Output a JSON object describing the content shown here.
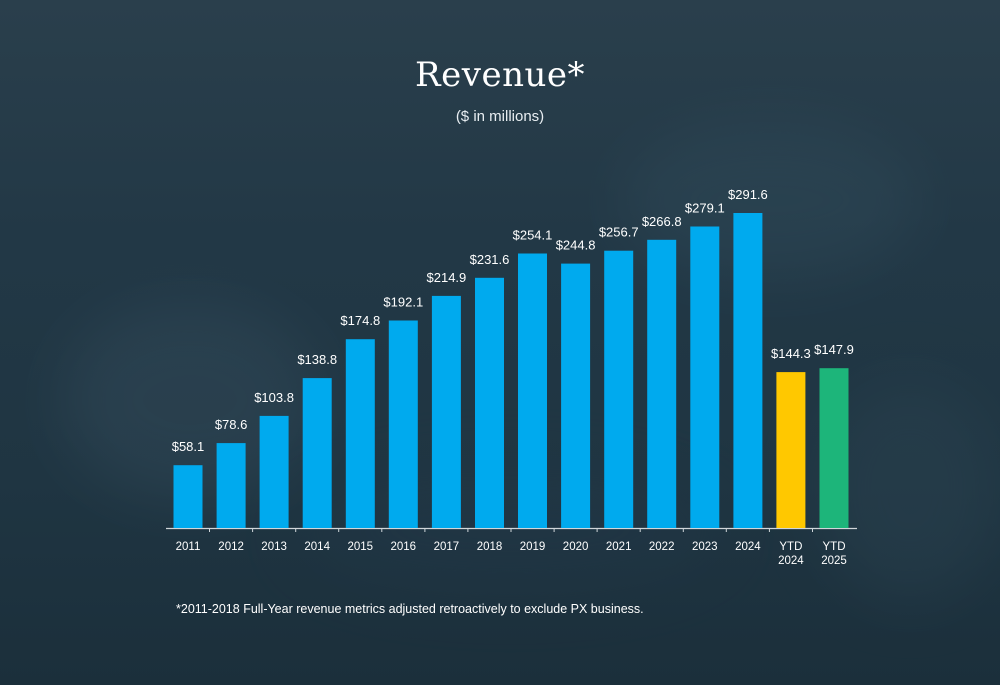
{
  "title": "Revenue*",
  "subtitle": "($ in millions)",
  "footnote": "*2011-2018 Full-Year revenue metrics adjusted retroactively to exclude PX business.",
  "colors": {
    "annual": "#00aaee",
    "ytd_2024": "#ffc800",
    "ytd_2025": "#1db57a",
    "axis": "#d0d6da",
    "text": "#ffffff"
  },
  "chart_data": {
    "type": "bar",
    "title": "Revenue*",
    "subtitle": "($ in millions)",
    "xlabel": "",
    "ylabel": "",
    "ylim": [
      0,
      291.6
    ],
    "grid": false,
    "legend": "none",
    "categories": [
      "2011",
      "2012",
      "2013",
      "2014",
      "2015",
      "2016",
      "2017",
      "2018",
      "2019",
      "2020",
      "2021",
      "2022",
      "2023",
      "2024",
      "YTD 2024",
      "YTD 2025"
    ],
    "category_lines": [
      [
        "2011"
      ],
      [
        "2012"
      ],
      [
        "2013"
      ],
      [
        "2014"
      ],
      [
        "2015"
      ],
      [
        "2016"
      ],
      [
        "2017"
      ],
      [
        "2018"
      ],
      [
        "2019"
      ],
      [
        "2020"
      ],
      [
        "2021"
      ],
      [
        "2022"
      ],
      [
        "2023"
      ],
      [
        "2024"
      ],
      [
        "YTD",
        "2024"
      ],
      [
        "YTD",
        "2025"
      ]
    ],
    "values": [
      58.1,
      78.6,
      103.8,
      138.8,
      174.8,
      192.1,
      214.9,
      231.6,
      254.1,
      244.8,
      256.7,
      266.8,
      279.1,
      291.6,
      144.3,
      147.9
    ],
    "labels": [
      "$58.1",
      "$78.6",
      "$103.8",
      "$138.8",
      "$174.8",
      "$192.1",
      "$214.9",
      "$231.6",
      "$254.1",
      "$244.8",
      "$256.7",
      "$266.8",
      "$279.1",
      "$291.6",
      "$144.3",
      "$147.9"
    ],
    "bar_colors": [
      "annual",
      "annual",
      "annual",
      "annual",
      "annual",
      "annual",
      "annual",
      "annual",
      "annual",
      "annual",
      "annual",
      "annual",
      "annual",
      "annual",
      "ytd_2024",
      "ytd_2025"
    ]
  }
}
